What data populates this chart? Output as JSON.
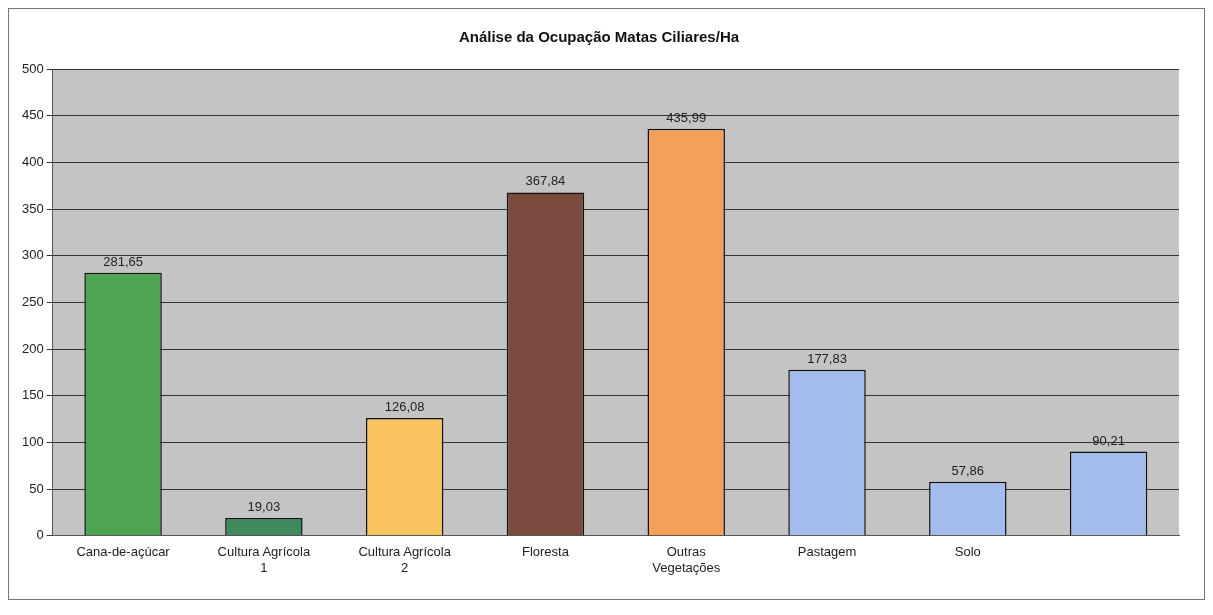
{
  "chart_data": {
    "type": "bar",
    "title": "Análise da Ocupação Matas Ciliares/Ha",
    "categories": [
      "Cana-de-açúcar",
      "Cultura Agrícola 1",
      "Cultura Agrícola 2",
      "Floresta",
      "Outras Vegetações",
      "Pastagem",
      "Solo",
      null
    ],
    "values": [
      281.65,
      19.03,
      126.08,
      367.84,
      435.99,
      177.83,
      57.86,
      90.21
    ],
    "value_labels": [
      "281,65",
      "19,03",
      "126,08",
      "367,84",
      "435,99",
      "177,83",
      "57,86",
      "90,21"
    ],
    "colors": [
      "#4fa552",
      "#3f8a5c",
      "#f8c35e",
      "#7a4a3c",
      "#f5a05a",
      "#a4bcec",
      "#a4bcec",
      "#a4bcec"
    ],
    "ylim": [
      0,
      500
    ],
    "yticks": [
      0,
      50,
      100,
      150,
      200,
      250,
      300,
      350,
      400,
      450,
      500
    ],
    "grid": "y",
    "legend": false
  }
}
